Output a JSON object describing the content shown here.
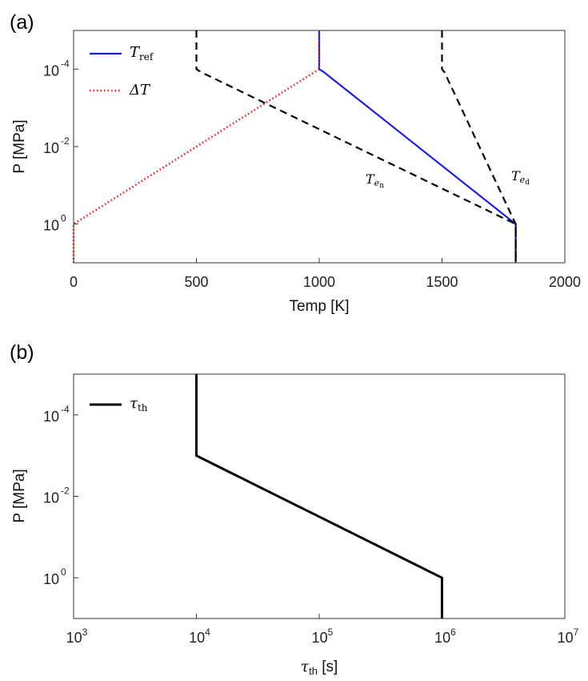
{
  "chart_data": [
    {
      "panel_label": "(a)",
      "type": "line",
      "xlabel": "Temp [K]",
      "ylabel": "P [MPa]",
      "xscale": "linear",
      "yscale": "log",
      "yreversed": true,
      "xlim": [
        0,
        2000
      ],
      "ylim": [
        1e-05,
        10
      ],
      "xticks": [
        0,
        500,
        1000,
        1500,
        2000
      ],
      "xtick_labels": [
        "0",
        "500",
        "1000",
        "1500",
        "2000"
      ],
      "yticks": [
        0.0001,
        0.01,
        1
      ],
      "ytick_labels": [
        {
          "base": "10",
          "exp": "-4"
        },
        {
          "base": "10",
          "exp": "-2"
        },
        {
          "base": "10",
          "exp": "0"
        }
      ],
      "legend_position": "top-left",
      "series": [
        {
          "name": "T",
          "name_sub": "ref",
          "color": "#1f1fd6",
          "style": "solid",
          "x": [
            1000,
            1000,
            1020,
            1800,
            1800
          ],
          "y": [
            1e-05,
            0.0001,
            0.00012,
            1,
            10
          ]
        },
        {
          "name": "ΔT",
          "name_sub": "",
          "color": "#d62020",
          "style": "dotted",
          "x": [
            0,
            0,
            1000,
            1000
          ],
          "y": [
            10,
            1,
            0.0001,
            1e-05
          ]
        },
        {
          "name": "",
          "name_sub": "",
          "color": "#000000",
          "style": "dashed",
          "x": [
            500,
            500,
            520,
            1800,
            1800
          ],
          "y": [
            1e-05,
            0.0001,
            0.00012,
            1,
            10
          ]
        },
        {
          "name": "",
          "name_sub": "",
          "color": "#000000",
          "style": "dashed",
          "x": [
            1500,
            1500,
            1510,
            1800,
            1800
          ],
          "y": [
            1e-05,
            0.0001,
            0.00012,
            1,
            10
          ]
        }
      ],
      "annotations": [
        {
          "text": "T",
          "sub": "e",
          "subsub": "n",
          "x": 1420,
          "y": 0.055
        },
        {
          "text": "T",
          "sub": "e",
          "subsub": "d",
          "x": 1720,
          "y": 0.055
        }
      ]
    },
    {
      "panel_label": "(b)",
      "type": "line",
      "xlabel": "τ",
      "xlabel_sub": "th",
      "xlabel_unit": " [s]",
      "ylabel": "P [MPa]",
      "xscale": "log",
      "yscale": "log",
      "yreversed": true,
      "xlim": [
        1000,
        10000000.0
      ],
      "ylim": [
        1e-05,
        10
      ],
      "xticks": [
        1000,
        10000.0,
        100000.0,
        1000000.0,
        10000000.0
      ],
      "xtick_labels": [
        {
          "base": "10",
          "exp": "3"
        },
        {
          "base": "10",
          "exp": "4"
        },
        {
          "base": "10",
          "exp": "5"
        },
        {
          "base": "10",
          "exp": "6"
        },
        {
          "base": "10",
          "exp": "7"
        }
      ],
      "yticks": [
        0.0001,
        0.01,
        1
      ],
      "ytick_labels": [
        {
          "base": "10",
          "exp": "-4"
        },
        {
          "base": "10",
          "exp": "-2"
        },
        {
          "base": "10",
          "exp": "0"
        }
      ],
      "legend_position": "top-left",
      "series": [
        {
          "name": "τ",
          "name_sub": "th",
          "color": "#000000",
          "style": "solid",
          "x": [
            10000.0,
            10000.0,
            1000000.0,
            1000000.0
          ],
          "y": [
            1e-05,
            0.001,
            1,
            10
          ]
        }
      ]
    }
  ]
}
